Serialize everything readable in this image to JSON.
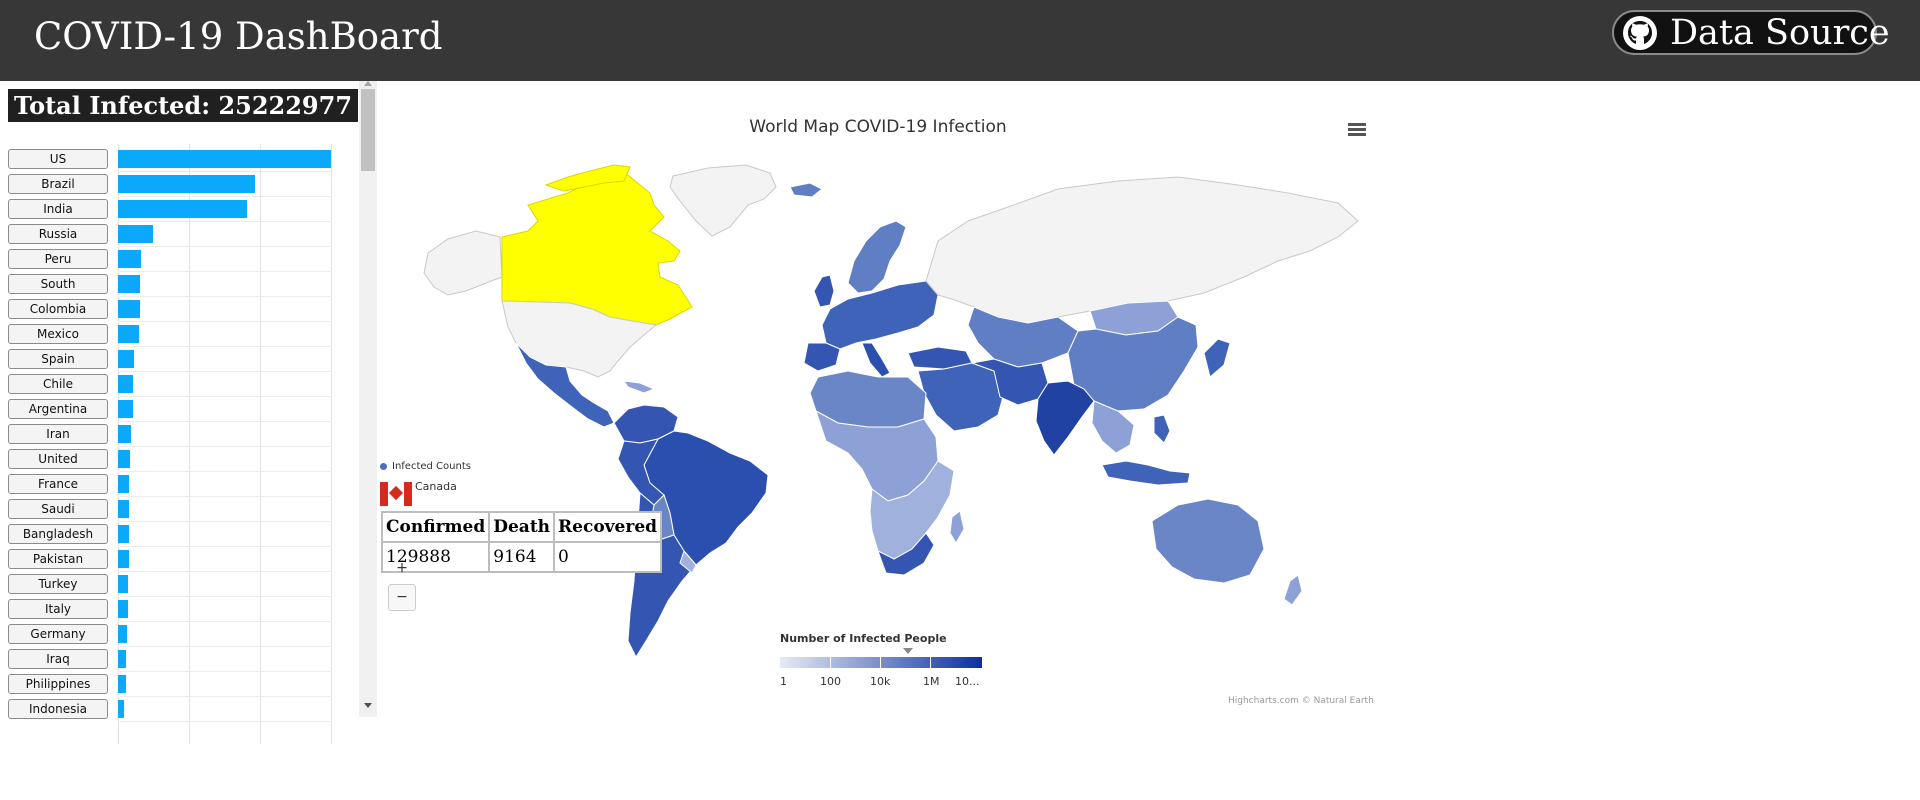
{
  "header": {
    "title": "COVID-19 DashBoard",
    "data_source_label": "Data Source",
    "data_source_icon": "github-icon"
  },
  "left_panel": {
    "total_infected": "Total Infected: 25222977",
    "countries": [
      {
        "name": "US",
        "value": 6000000
      },
      {
        "name": "Brazil",
        "value": 3860000
      },
      {
        "name": "India",
        "value": 3620000
      },
      {
        "name": "Russia",
        "value": 990000
      },
      {
        "name": "Peru",
        "value": 650000
      },
      {
        "name": "South",
        "value": 625000
      },
      {
        "name": "Colombia",
        "value": 615000
      },
      {
        "name": "Mexico",
        "value": 595000
      },
      {
        "name": "Spain",
        "value": 460000
      },
      {
        "name": "Chile",
        "value": 410000
      },
      {
        "name": "Argentina",
        "value": 410000
      },
      {
        "name": "Iran",
        "value": 375000
      },
      {
        "name": "United",
        "value": 340000
      },
      {
        "name": "France",
        "value": 315000
      },
      {
        "name": "Saudi",
        "value": 315000
      },
      {
        "name": "Bangladesh",
        "value": 310000
      },
      {
        "name": "Pakistan",
        "value": 296000
      },
      {
        "name": "Turkey",
        "value": 270000
      },
      {
        "name": "Italy",
        "value": 269000
      },
      {
        "name": "Germany",
        "value": 244000
      },
      {
        "name": "Iraq",
        "value": 235000
      },
      {
        "name": "Philippines",
        "value": 224000
      },
      {
        "name": "Indonesia",
        "value": 175000
      }
    ],
    "bar_color": "#0aa9fb"
  },
  "map": {
    "title": "World Map COVID-19 Infection",
    "menu_icon": "hamburger-menu-icon",
    "legend_series": "Infected Counts",
    "selected_country": "Canada",
    "selected_color": "#ffff00",
    "info_table": {
      "headers": [
        "Confirmed",
        "Death",
        "Recovered"
      ],
      "values": [
        "129888",
        "9164",
        "0"
      ]
    },
    "zoom_in": "+",
    "zoom_out": "−",
    "colorbar_title": "Number of Infected People",
    "colorbar_labels": [
      "1",
      "100",
      "10k",
      "1M",
      "10..."
    ],
    "credits": "Highcharts.com © Natural Earth"
  }
}
